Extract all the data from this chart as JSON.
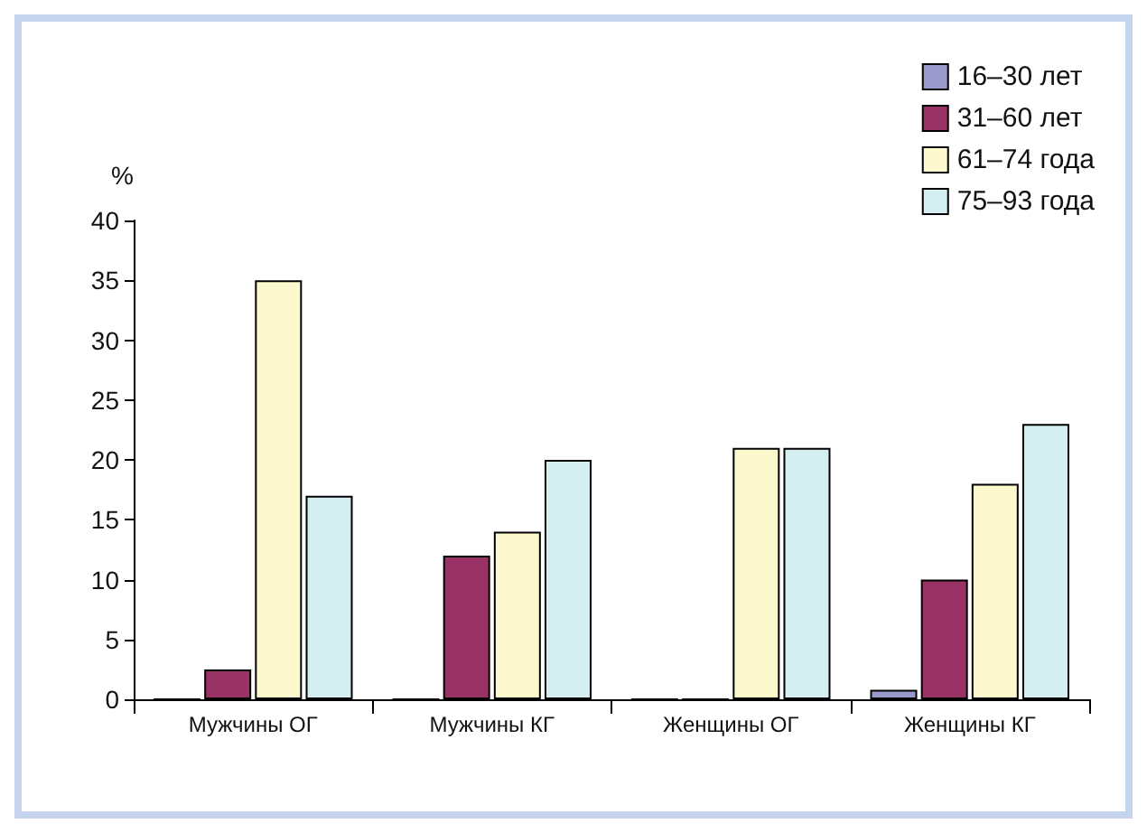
{
  "chart_data": {
    "type": "bar",
    "ylabel": "%",
    "categories": [
      "Мужчины ОГ",
      "Мужчины КГ",
      "Женщины ОГ",
      "Женщины КГ"
    ],
    "series": [
      {
        "name": "16–30 лет",
        "color": "#9999cc",
        "values": [
          0,
          0,
          0,
          0.8
        ]
      },
      {
        "name": "31–60 лет",
        "color": "#993366",
        "values": [
          2.5,
          12,
          0,
          10
        ]
      },
      {
        "name": "61–74 года",
        "color": "#fcf9cf",
        "values": [
          35,
          14,
          21,
          18
        ]
      },
      {
        "name": "75–93 года",
        "color": "#d4eef2",
        "values": [
          17,
          20,
          21,
          23
        ]
      }
    ],
    "ylim": [
      0,
      40
    ],
    "yticks": [
      0,
      5,
      10,
      15,
      20,
      25,
      30,
      35,
      40
    ],
    "grid": false,
    "legend": "top right"
  }
}
